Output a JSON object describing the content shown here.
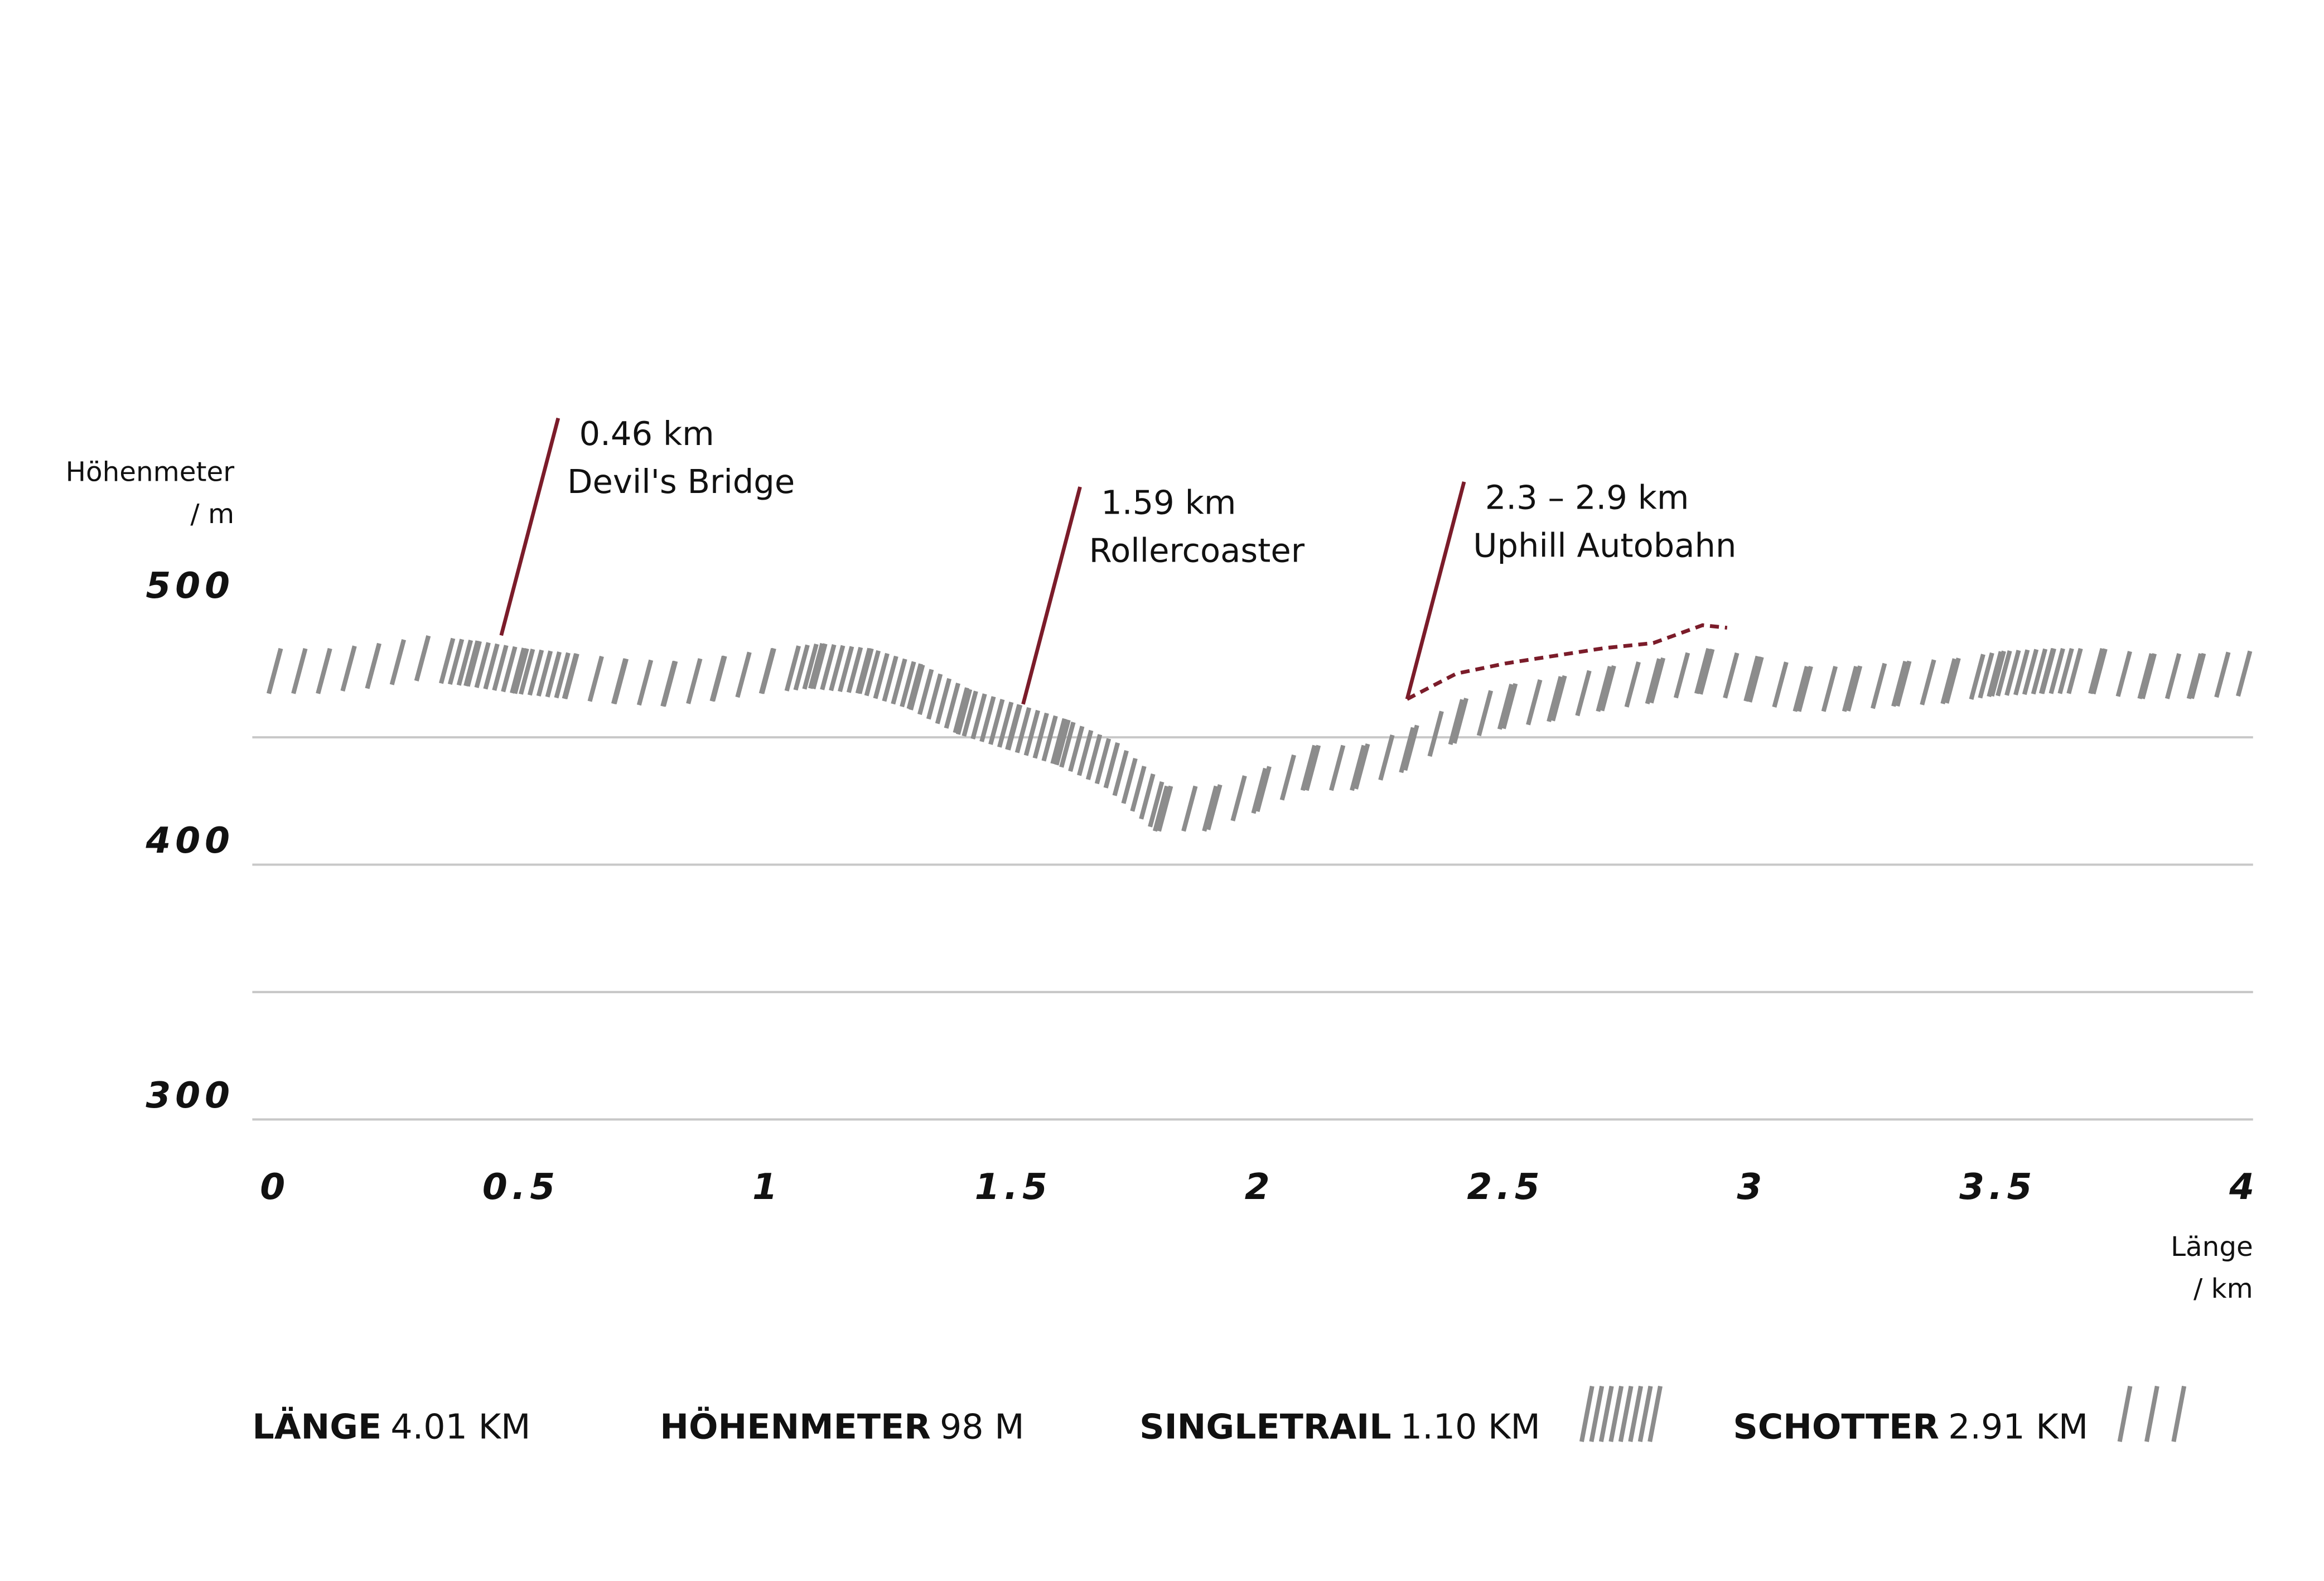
{
  "chart_data": {
    "type": "line",
    "x_label": [
      "Länge",
      "/ km"
    ],
    "y_label": [
      "Höhenmeter",
      "/ m"
    ],
    "xlim": [
      0,
      4
    ],
    "xticks": [
      0,
      0.5,
      1,
      1.5,
      2,
      2.5,
      3,
      3.5,
      4
    ],
    "ylim": [
      300,
      500
    ],
    "yticks": [
      300,
      400,
      500
    ],
    "ygrid": [
      300,
      350,
      400,
      450
    ],
    "series": [
      {
        "color": "#8c8c8c",
        "x": [
          0,
          0.1,
          0.2,
          0.3,
          0.4,
          0.5,
          0.6,
          0.7,
          0.8,
          0.9,
          1,
          1.1,
          1.2,
          1.3,
          1.4,
          1.5,
          1.6,
          1.7,
          1.8,
          1.9,
          2,
          2.1,
          2.2,
          2.3,
          2.4,
          2.5,
          2.6,
          2.7,
          2.8,
          2.9,
          3,
          3.1,
          3.2,
          3.3,
          3.4,
          3.5,
          3.6,
          3.7,
          3.8,
          3.9,
          4
        ],
        "values": [
          476,
          476,
          478,
          481,
          479,
          476,
          474,
          472,
          471,
          473,
          476,
          478,
          476,
          470,
          460,
          454,
          448,
          439,
          422,
          422,
          429,
          438,
          438,
          445,
          456,
          462,
          465,
          469,
          472,
          476,
          473,
          469,
          469,
          471,
          472,
          475,
          476,
          476,
          474,
          474,
          475
        ]
      },
      {
        "color": "#7b1c2a",
        "dashed": true,
        "x": [
          2.3,
          2.4,
          2.5,
          2.6,
          2.7,
          2.8,
          2.9,
          2.95
        ],
        "values": [
          465,
          475,
          479,
          482,
          485,
          487,
          494,
          493
        ]
      }
    ],
    "singletrail_ranges": [
      [
        0.35,
        0.6
      ],
      [
        1.05,
        1.8
      ],
      [
        3.45,
        3.65
      ]
    ],
    "annotations": [
      {
        "text": [
          "0.46 km",
          "Devil's Bridge"
        ],
        "x": 0.46,
        "y": 490,
        "color": "#7b1c2a"
      },
      {
        "text": [
          "1.59 km",
          "Rollercoaster"
        ],
        "x": 1.52,
        "y": 463,
        "color": "#7b1c2a"
      },
      {
        "text": [
          "2.3 – 2.9 km",
          "Uphill Autobahn"
        ],
        "x": 2.3,
        "y": 465,
        "color": "#7b1c2a"
      }
    ],
    "stats": [
      {
        "label": "LÄNGE",
        "value": "4.01 KM"
      },
      {
        "label": "HÖHENMETER",
        "value": "98 M"
      },
      {
        "label": "SINGLETRAIL",
        "value": "1.10 KM"
      },
      {
        "label": "SCHOTTER",
        "value": "2.91 KM"
      }
    ]
  }
}
